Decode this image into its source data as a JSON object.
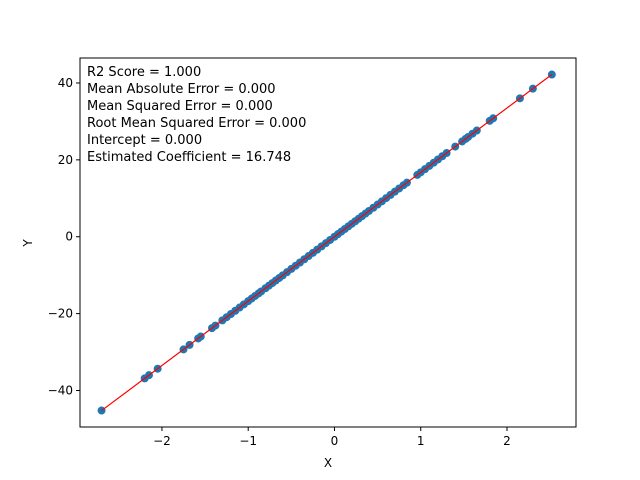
{
  "chart_data": {
    "type": "scatter",
    "xlabel": "X",
    "ylabel": "Y",
    "xlim": [
      -2.95,
      2.8
    ],
    "ylim": [
      -49.5,
      46.5
    ],
    "xticks": [
      -2,
      -1,
      0,
      1,
      2
    ],
    "yticks": [
      -40,
      -20,
      0,
      20,
      40
    ],
    "grid": false,
    "annotations": [
      "R2 Score = 1.000",
      "Mean Absolute Error = 0.000",
      "Mean Squared Error = 0.000",
      "Root Mean Squared Error = 0.000",
      "Intercept = 0.000",
      "Estimated Coefficient = 16.748"
    ],
    "points_color": "#1f77b4",
    "line_color": "#ff0000",
    "fit_line": {
      "intercept": 0.0,
      "slope": 16.748,
      "x_range": [
        -2.7,
        2.52
      ]
    },
    "x": [
      -2.7,
      -2.2,
      -2.15,
      -2.05,
      -1.75,
      -1.68,
      -1.58,
      -1.55,
      -1.42,
      -1.38,
      -1.3,
      -1.25,
      -1.2,
      -1.15,
      -1.1,
      -1.05,
      -1.0,
      -0.96,
      -0.92,
      -0.88,
      -0.85,
      -0.8,
      -0.76,
      -0.72,
      -0.68,
      -0.64,
      -0.6,
      -0.55,
      -0.5,
      -0.45,
      -0.4,
      -0.35,
      -0.3,
      -0.25,
      -0.2,
      -0.15,
      -0.1,
      -0.05,
      0.0,
      0.04,
      0.08,
      0.12,
      0.16,
      0.2,
      0.24,
      0.28,
      0.32,
      0.36,
      0.4,
      0.45,
      0.5,
      0.55,
      0.6,
      0.65,
      0.7,
      0.75,
      0.8,
      0.84,
      0.96,
      1.0,
      1.05,
      1.1,
      1.15,
      1.2,
      1.25,
      1.3,
      1.4,
      1.48,
      1.52,
      1.55,
      1.6,
      1.65,
      1.8,
      1.84,
      2.15,
      2.3,
      2.52
    ],
    "y": [
      -45.22,
      -36.85,
      -36.01,
      -34.33,
      -29.31,
      -28.13,
      -26.46,
      -25.96,
      -23.78,
      -23.11,
      -21.77,
      -20.94,
      -20.1,
      -19.26,
      -18.42,
      -17.59,
      -16.75,
      -16.08,
      -15.41,
      -14.74,
      -14.24,
      -13.4,
      -12.73,
      -12.06,
      -11.39,
      -10.72,
      -10.05,
      -9.21,
      -8.37,
      -7.54,
      -6.7,
      -5.86,
      -5.02,
      -4.19,
      -3.35,
      -2.51,
      -1.67,
      -0.84,
      0.0,
      0.67,
      1.34,
      2.01,
      2.68,
      3.35,
      4.02,
      4.69,
      5.36,
      6.03,
      6.7,
      7.54,
      8.37,
      9.21,
      10.05,
      10.89,
      11.72,
      12.56,
      13.4,
      14.07,
      16.08,
      16.75,
      17.59,
      18.42,
      19.26,
      20.1,
      20.94,
      21.77,
      23.45,
      24.79,
      25.46,
      25.96,
      26.8,
      27.63,
      30.15,
      30.82,
      36.01,
      38.52,
      42.2
    ]
  }
}
